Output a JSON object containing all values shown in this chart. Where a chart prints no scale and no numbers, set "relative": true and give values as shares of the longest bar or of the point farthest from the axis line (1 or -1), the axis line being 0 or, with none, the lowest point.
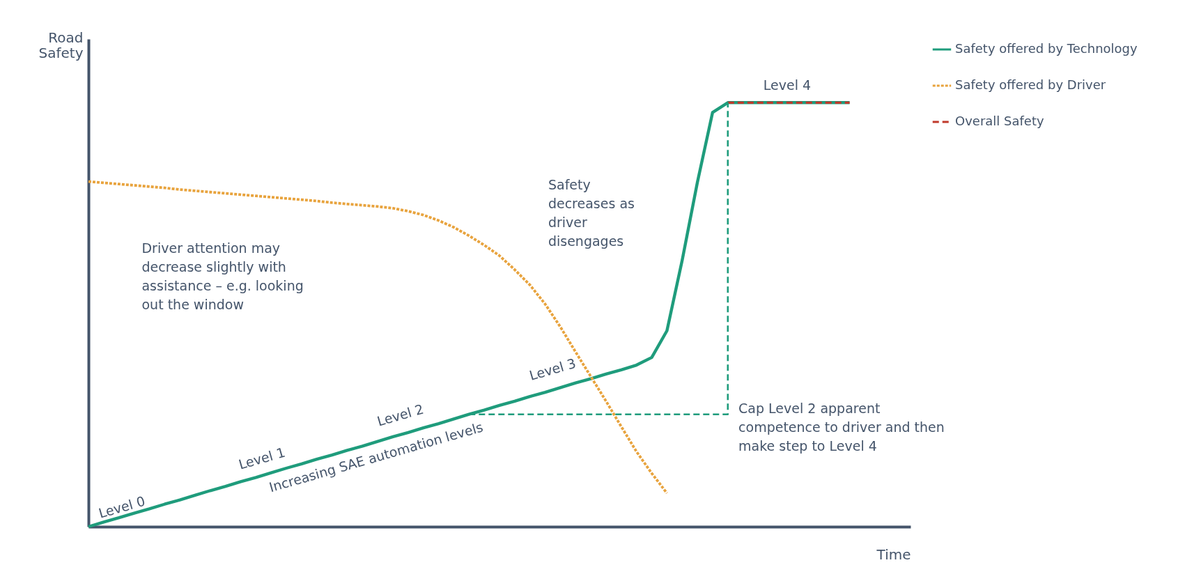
{
  "chart_data": {
    "type": "line",
    "relative": true,
    "xlabel": "Time",
    "ylabel": "Road Safety",
    "legend": "top right",
    "categories": [
      null,
      null,
      null,
      null,
      null,
      null,
      null,
      null,
      null,
      null,
      null,
      null,
      null,
      null,
      null,
      null,
      null,
      null,
      null,
      null,
      null,
      null,
      null,
      null,
      null,
      null,
      null,
      null,
      null,
      null,
      null,
      null,
      null,
      null,
      null,
      null,
      null,
      null,
      null,
      null,
      null,
      null,
      null,
      null,
      null,
      null,
      null,
      null,
      null,
      null,
      null,
      null,
      null,
      null,
      null
    ],
    "series": [
      {
        "name": "Safety offered by Technology",
        "color": "#1f9c7c",
        "line_style": "solid",
        "values": [
          0,
          0.011,
          0.021,
          0.032,
          0.042,
          0.053,
          0.063,
          0.074,
          0.085,
          0.095,
          0.106,
          0.116,
          0.127,
          0.138,
          0.148,
          0.159,
          0.169,
          0.18,
          0.19,
          0.201,
          0.212,
          0.222,
          0.233,
          0.243,
          0.254,
          0.265,
          0.275,
          0.286,
          0.296,
          0.307,
          0.317,
          0.328,
          0.339,
          0.349,
          0.36,
          0.37,
          0.381,
          0.399,
          0.462,
          0.628,
          0.812,
          0.977,
          1,
          1,
          1,
          1,
          1,
          1,
          1,
          1,
          1,
          null,
          null,
          null,
          null
        ]
      },
      {
        "name": "Safety offered by Driver",
        "color": "#e8a33d",
        "line_style": "dotted",
        "values": [
          0.814,
          0.811,
          0.808,
          0.805,
          0.802,
          0.799,
          0.795,
          0.792,
          0.789,
          0.786,
          0.783,
          0.78,
          0.777,
          0.774,
          0.771,
          0.768,
          0.764,
          0.761,
          0.758,
          0.755,
          0.751,
          0.744,
          0.735,
          0.722,
          0.706,
          0.686,
          0.664,
          0.639,
          0.606,
          0.57,
          0.525,
          0.471,
          0.412,
          0.354,
          0.296,
          0.236,
          0.177,
          0.126,
          0.079,
          null,
          null,
          null,
          null,
          null,
          null,
          null,
          null,
          null,
          null,
          null,
          null,
          null,
          null,
          null,
          null
        ]
      },
      {
        "name": "Overall Safety",
        "color": "#c0392b",
        "line_style": "dashed",
        "values": [
          null,
          null,
          null,
          null,
          null,
          null,
          null,
          null,
          null,
          null,
          null,
          null,
          null,
          null,
          null,
          null,
          null,
          null,
          null,
          null,
          null,
          null,
          null,
          null,
          null,
          null,
          null,
          null,
          null,
          null,
          null,
          null,
          null,
          null,
          null,
          null,
          null,
          null,
          null,
          null,
          null,
          null,
          1,
          1,
          1,
          1,
          1,
          1,
          1,
          1,
          1,
          null,
          null,
          null,
          null
        ]
      },
      {
        "type": "step",
        "color": "#1f9c7c",
        "line_style": "dashed",
        "values": [
          null,
          null,
          null,
          null,
          null,
          null,
          null,
          null,
          null,
          null,
          null,
          null,
          null,
          null,
          null,
          null,
          null,
          null,
          null,
          null,
          null,
          null,
          null,
          null,
          null,
          0.265,
          0.265,
          0.265,
          0.265,
          0.265,
          0.265,
          0.265,
          0.265,
          0.265,
          0.265,
          0.265,
          0.265,
          0.265,
          0.265,
          0.265,
          0.265,
          0.265,
          1,
          null,
          null,
          null,
          null,
          null,
          null,
          null,
          null,
          null,
          null,
          null,
          null
        ]
      }
    ],
    "annotations": [
      "Level 0",
      "Level 1",
      "Level 2",
      "Level 3",
      "Level 4",
      "Increasing SAE automation levels",
      "Driver attention may decrease slightly with assistance – e.g. looking out the window",
      "Safety decreases as driver disengages",
      "Cap Level 2 apparent competence to driver and then make step to Level 4"
    ]
  }
}
